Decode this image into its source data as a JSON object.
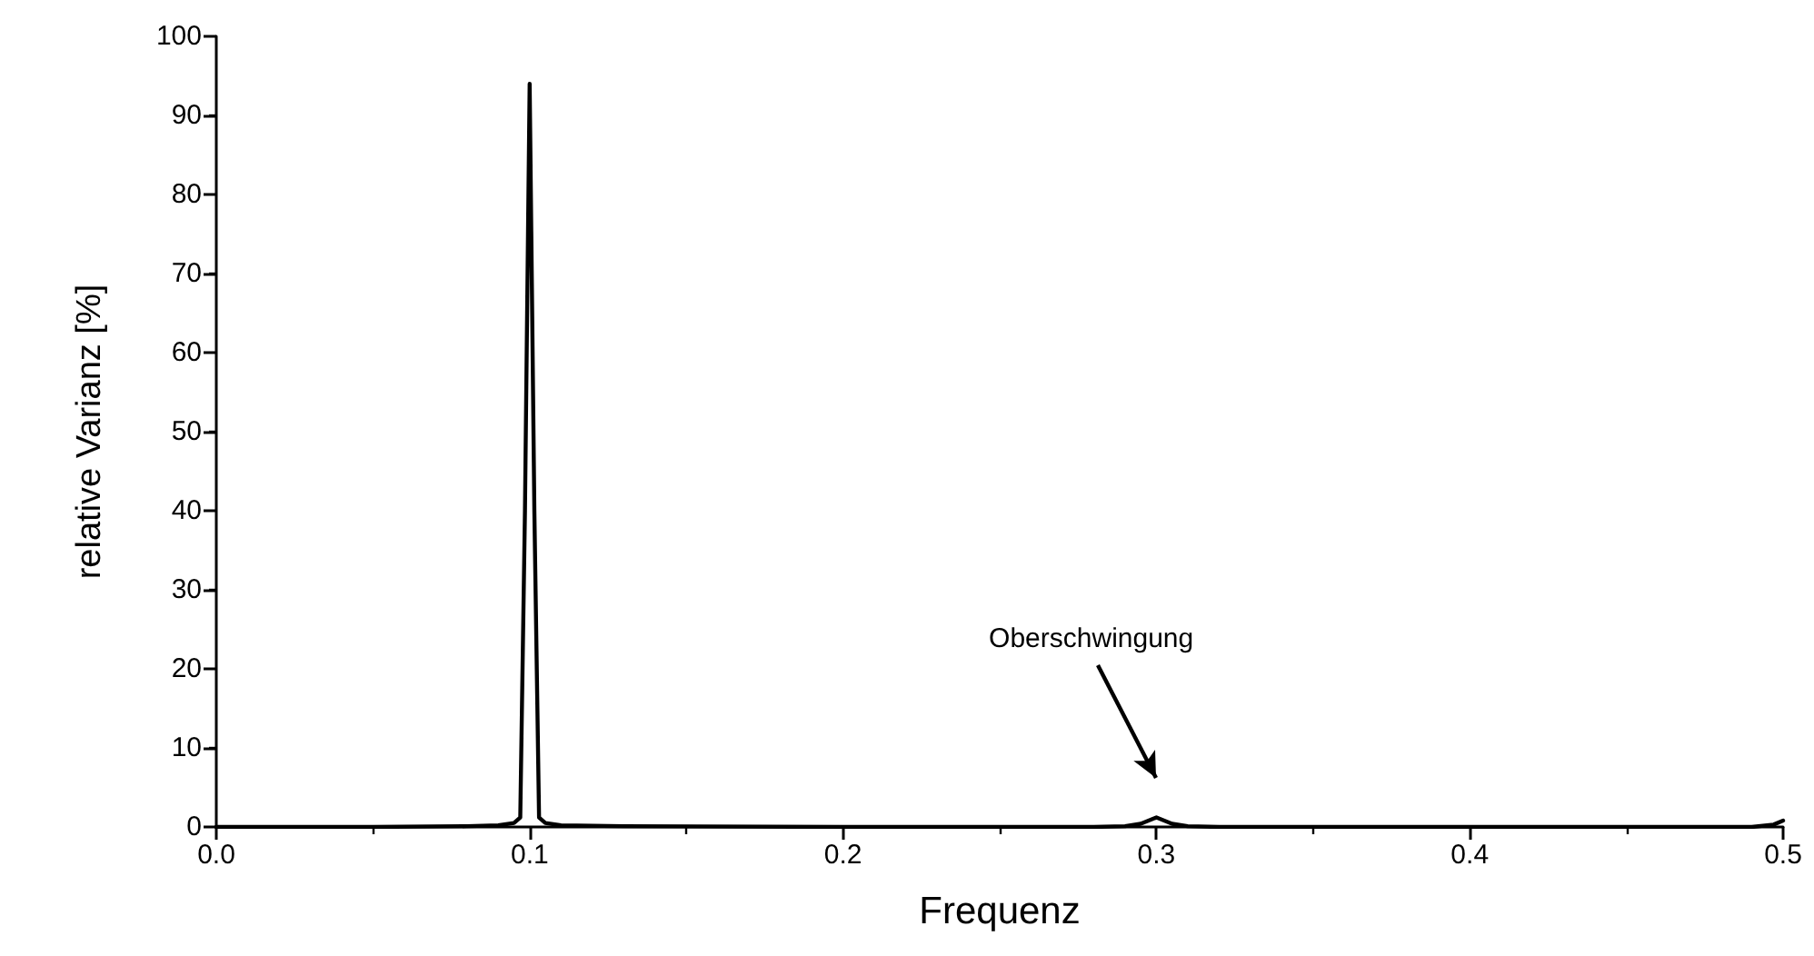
{
  "chart_data": {
    "type": "line",
    "xlabel": "Frequenz",
    "ylabel": "relative Varianz [%]",
    "annotations": [
      "Oberschwingung"
    ],
    "series": [
      {
        "color": "#000000",
        "x": [
          0,
          0.05,
          0.08,
          0.09,
          0.095,
          0.097,
          0.0985,
          0.1,
          0.1015,
          0.103,
          0.105,
          0.11,
          0.13,
          0.2,
          0.28,
          0.29,
          0.295,
          0.3,
          0.305,
          0.31,
          0.32,
          0.4,
          0.49,
          0.497,
          0.5
        ],
        "values": [
          0,
          0,
          0.1,
          0.2,
          0.5,
          1.2,
          40,
          94,
          40,
          1.2,
          0.5,
          0.2,
          0.1,
          0,
          0,
          0.1,
          0.4,
          1.2,
          0.4,
          0.1,
          0,
          0,
          0,
          0.3,
          0.8
        ]
      }
    ],
    "xlim": [
      0,
      0.5
    ],
    "xticks": [
      {
        "value": 0,
        "label": "0.0"
      },
      0.1,
      0.2,
      0.3,
      0.4,
      0.5
    ],
    "ylim": [
      0,
      100
    ],
    "yticks": [
      0,
      10,
      20,
      30,
      40,
      50,
      60,
      70,
      80,
      90,
      100
    ],
    "marker": "none",
    "line_style": "solid"
  }
}
